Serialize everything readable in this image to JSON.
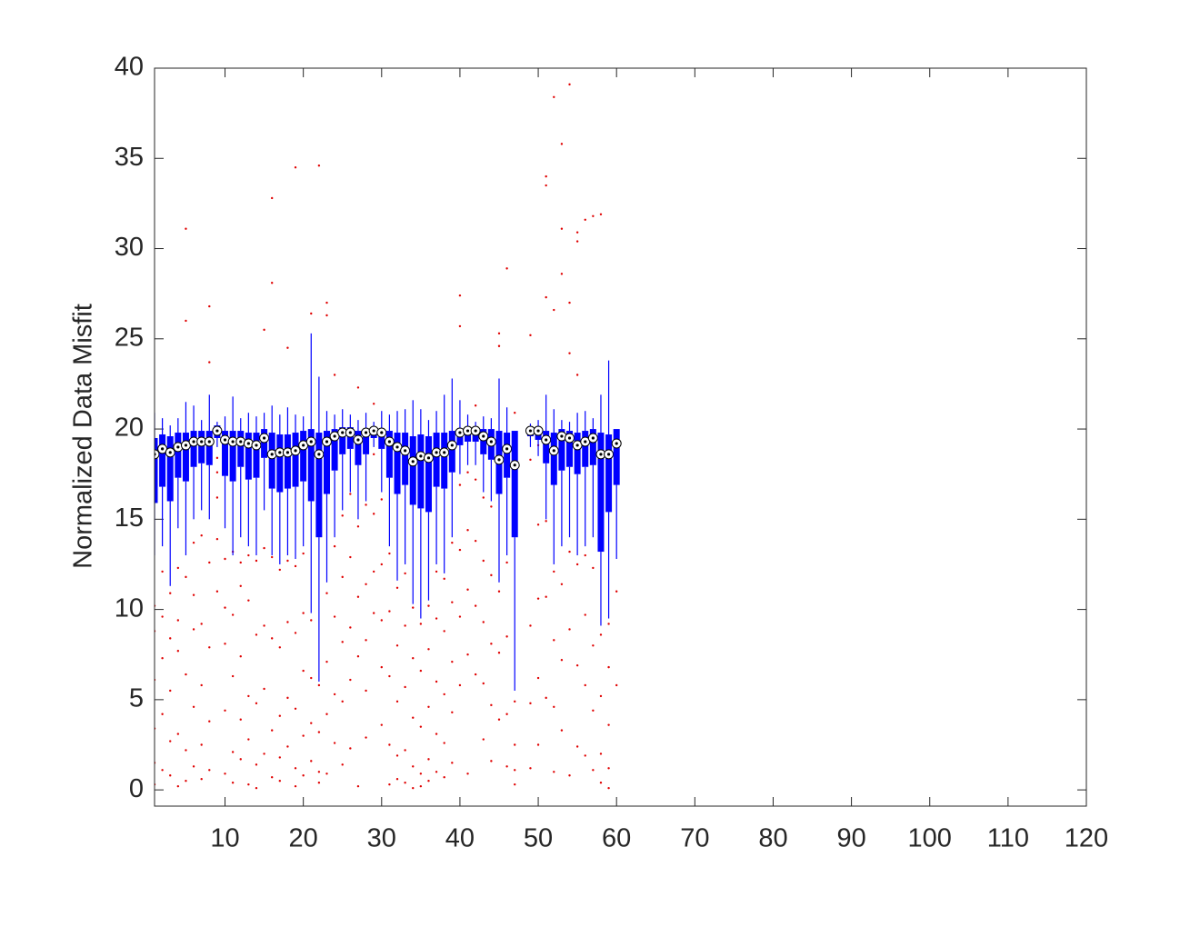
{
  "chart_data": {
    "type": "box",
    "ylabel": "Normalized Data Misfit",
    "xlim": [
      1,
      120
    ],
    "ylim": [
      -0.9,
      40
    ],
    "xticks": [
      10,
      20,
      30,
      40,
      50,
      60,
      70,
      80,
      90,
      100,
      110,
      120
    ],
    "yticks": [
      0,
      5,
      10,
      15,
      20,
      25,
      30,
      35,
      40
    ],
    "box_color": "#0000ff",
    "outlier_color": "#e00000",
    "x": [
      1,
      2,
      3,
      4,
      5,
      6,
      7,
      8,
      9,
      10,
      11,
      12,
      13,
      14,
      15,
      16,
      17,
      18,
      19,
      20,
      21,
      22,
      23,
      24,
      25,
      26,
      27,
      28,
      29,
      30,
      31,
      32,
      33,
      34,
      35,
      36,
      37,
      38,
      39,
      40,
      41,
      42,
      43,
      44,
      45,
      46,
      47,
      49,
      50,
      51,
      52,
      53,
      54,
      55,
      56,
      57,
      58,
      59,
      60
    ],
    "q1": [
      15.9,
      16.8,
      16.0,
      17.3,
      17.1,
      17.9,
      18.1,
      18.0,
      19.5,
      17.4,
      17.1,
      17.9,
      17.2,
      17.3,
      18.4,
      16.7,
      16.5,
      16.7,
      16.8,
      17.1,
      16.0,
      14.0,
      16.4,
      17.7,
      18.6,
      18.9,
      18.0,
      18.6,
      19.5,
      18.9,
      17.3,
      16.4,
      16.9,
      15.8,
      15.6,
      15.4,
      16.8,
      16.7,
      17.6,
      19.1,
      19.3,
      19.3,
      18.6,
      18.3,
      16.4,
      17.3,
      14.0,
      19.6,
      19.4,
      18.1,
      16.9,
      17.7,
      17.9,
      17.5,
      17.9,
      18.0,
      13.2,
      15.4,
      16.9
    ],
    "median": [
      18.6,
      18.9,
      18.7,
      19.0,
      19.1,
      19.3,
      19.3,
      19.3,
      19.9,
      19.4,
      19.3,
      19.3,
      19.2,
      19.1,
      19.5,
      18.6,
      18.7,
      18.7,
      18.8,
      19.1,
      19.3,
      18.6,
      19.3,
      19.6,
      19.8,
      19.8,
      19.4,
      19.8,
      19.9,
      19.8,
      19.3,
      19.0,
      18.8,
      18.2,
      18.5,
      18.4,
      18.7,
      18.7,
      19.1,
      19.8,
      19.9,
      19.9,
      19.6,
      19.3,
      18.3,
      18.9,
      18.0,
      19.9,
      19.9,
      19.4,
      18.8,
      19.6,
      19.5,
      19.1,
      19.3,
      19.5,
      18.6,
      18.6,
      19.2
    ],
    "q3": [
      19.5,
      19.7,
      19.6,
      19.8,
      19.8,
      19.9,
      19.9,
      19.9,
      20.2,
      19.9,
      19.9,
      19.9,
      19.8,
      19.8,
      20.0,
      19.8,
      19.7,
      19.7,
      19.8,
      19.9,
      20.0,
      19.8,
      19.9,
      20.0,
      20.1,
      20.1,
      19.9,
      20.0,
      20.1,
      20.0,
      19.9,
      19.8,
      19.8,
      19.6,
      19.7,
      19.6,
      19.8,
      19.8,
      19.9,
      20.0,
      20.1,
      20.1,
      20.0,
      20.0,
      19.9,
      19.8,
      19.9,
      20.1,
      20.1,
      19.9,
      19.8,
      20.0,
      19.9,
      19.8,
      19.9,
      20.0,
      19.8,
      19.7,
      20.0
    ],
    "whisker_low": [
      13.0,
      13.5,
      11.3,
      14.5,
      13.0,
      15.0,
      15.5,
      15.0,
      19.0,
      14.5,
      13.0,
      14.0,
      13.5,
      13.0,
      15.5,
      13.0,
      12.5,
      13.0,
      12.8,
      13.5,
      9.8,
      6.0,
      11.5,
      14.0,
      15.5,
      16.5,
      15.0,
      16.0,
      19.0,
      16.5,
      13.5,
      11.6,
      12.5,
      10.3,
      9.5,
      10.5,
      12.5,
      12.0,
      14.0,
      17.5,
      18.0,
      18.0,
      16.5,
      16.0,
      11.5,
      13.0,
      5.5,
      19.0,
      18.5,
      15.0,
      12.5,
      13.5,
      14.0,
      13.0,
      13.5,
      14.0,
      9.1,
      9.5,
      12.8
    ],
    "whisker_high": [
      20.9,
      20.6,
      20.2,
      20.6,
      21.5,
      21.3,
      20.5,
      21.9,
      20.4,
      20.7,
      21.8,
      20.6,
      20.9,
      20.7,
      20.9,
      21.3,
      20.8,
      21.2,
      20.8,
      20.7,
      25.3,
      22.9,
      21.0,
      20.8,
      21.1,
      20.8,
      20.5,
      20.9,
      20.4,
      21.0,
      20.8,
      21.0,
      21.1,
      21.6,
      21.1,
      20.5,
      21.0,
      21.9,
      22.8,
      21.6,
      20.8,
      20.4,
      20.7,
      20.6,
      22.8,
      21.2,
      19.9,
      20.3,
      20.5,
      21.9,
      21.1,
      20.5,
      20.4,
      20.9,
      21.0,
      20.6,
      21.9,
      23.8,
      20.0
    ],
    "outliers": [
      [
        10.2,
        6.1,
        3.4,
        0.3,
        8.8,
        1.5
      ],
      [
        9.6,
        4.2,
        1.1,
        7.3,
        12.1
      ],
      [
        8.4,
        5.5,
        2.7,
        0.8,
        10.9
      ],
      [
        12.3,
        7.7,
        3.1,
        0.2,
        9.4
      ],
      [
        31.1,
        26.0,
        11.8,
        6.4,
        2.2,
        0.5
      ],
      [
        13.7,
        8.9,
        4.6,
        1.3,
        10.8
      ],
      [
        14.1,
        9.2,
        5.8,
        2.5,
        0.6
      ],
      [
        26.8,
        23.7,
        12.6,
        7.9,
        3.8,
        1.1
      ],
      [
        18.4,
        17.6,
        16.2,
        13.9,
        11.0
      ],
      [
        12.8,
        8.1,
        4.4,
        0.9,
        10.1
      ],
      [
        13.2,
        9.7,
        6.3,
        2.1,
        0.4
      ],
      [
        12.6,
        7.4,
        3.9,
        1.7,
        11.3
      ],
      [
        13.0,
        10.5,
        5.2,
        2.8,
        0.3
      ],
      [
        12.7,
        8.6,
        4.8,
        1.4,
        0.1
      ],
      [
        25.5,
        13.4,
        9.1,
        5.6,
        2.0
      ],
      [
        32.8,
        28.1,
        12.9,
        8.4,
        3.3,
        0.7
      ],
      [
        12.2,
        7.9,
        4.1,
        1.8,
        0.5
      ],
      [
        24.5,
        12.7,
        9.3,
        5.1,
        2.4
      ],
      [
        34.5,
        12.4,
        8.7,
        4.5,
        1.2,
        0.2
      ],
      [
        13.1,
        9.8,
        6.6,
        3.0,
        0.8
      ],
      [
        26.4,
        9.4,
        6.2,
        3.7,
        1.6
      ],
      [
        34.6,
        5.8,
        3.2,
        1.0,
        0.4
      ],
      [
        27.0,
        26.3,
        10.9,
        7.1,
        4.2,
        0.9
      ],
      [
        23.0,
        13.5,
        9.6,
        5.3,
        2.6
      ],
      [
        15.2,
        11.8,
        8.2,
        4.9,
        1.4
      ],
      [
        16.4,
        12.9,
        9.0,
        6.1,
        2.3
      ],
      [
        22.3,
        14.6,
        10.7,
        7.4,
        0.2
      ],
      [
        15.8,
        11.4,
        8.3,
        5.5,
        2.9
      ],
      [
        21.4,
        18.6,
        15.3,
        12.1,
        9.8
      ],
      [
        16.1,
        12.5,
        9.4,
        6.8,
        3.6
      ],
      [
        13.1,
        9.9,
        6.3,
        2.5,
        0.3
      ],
      [
        11.2,
        8.0,
        4.9,
        1.9,
        0.6
      ],
      [
        12.0,
        9.1,
        5.7,
        2.2,
        0.4
      ],
      [
        10.1,
        7.3,
        4.0,
        1.3,
        0.1
      ],
      [
        9.2,
        6.6,
        3.5,
        0.9,
        0.2
      ],
      [
        10.2,
        7.8,
        4.6,
        1.7,
        0.5
      ],
      [
        12.1,
        9.5,
        6.0,
        3.1,
        1.0
      ],
      [
        11.7,
        8.8,
        5.3,
        2.6,
        0.7
      ],
      [
        13.7,
        10.4,
        7.1,
        4.3,
        1.5
      ],
      [
        27.4,
        25.7,
        16.9,
        13.3,
        9.6,
        5.8
      ],
      [
        17.6,
        14.4,
        11.1,
        7.5,
        0.9
      ],
      [
        21.3,
        17.2,
        13.8,
        10.2,
        6.4
      ],
      [
        16.2,
        12.7,
        9.3,
        5.9,
        2.8
      ],
      [
        15.7,
        11.9,
        8.1,
        4.7,
        1.6
      ],
      [
        25.3,
        24.6,
        11.0,
        7.6,
        3.9
      ],
      [
        28.9,
        12.6,
        8.5,
        4.2,
        1.3
      ],
      [
        20.9,
        4.9,
        2.5,
        1.1,
        0.3
      ],
      [
        25.2,
        18.3,
        9.1,
        4.8,
        1.2
      ],
      [
        19.1,
        14.7,
        10.6,
        6.2,
        2.5
      ],
      [
        34.0,
        33.5,
        27.3,
        14.9,
        10.7,
        5.1
      ],
      [
        38.4,
        26.6,
        12.1,
        8.3,
        4.6,
        1.0
      ],
      [
        35.8,
        31.1,
        28.6,
        11.4,
        7.2,
        3.3
      ],
      [
        39.1,
        27.0,
        24.2,
        13.2,
        8.9,
        0.8
      ],
      [
        30.9,
        30.4,
        23.0,
        12.5,
        6.9,
        2.4
      ],
      [
        31.6,
        13.0,
        9.7,
        5.8,
        1.9
      ],
      [
        31.8,
        12.3,
        8.0,
        4.4,
        1.1
      ],
      [
        31.9,
        8.6,
        5.2,
        2.0,
        0.4
      ],
      [
        9.2,
        6.8,
        3.6,
        1.2,
        0.1
      ],
      [
        11.0,
        5.8
      ]
    ]
  }
}
